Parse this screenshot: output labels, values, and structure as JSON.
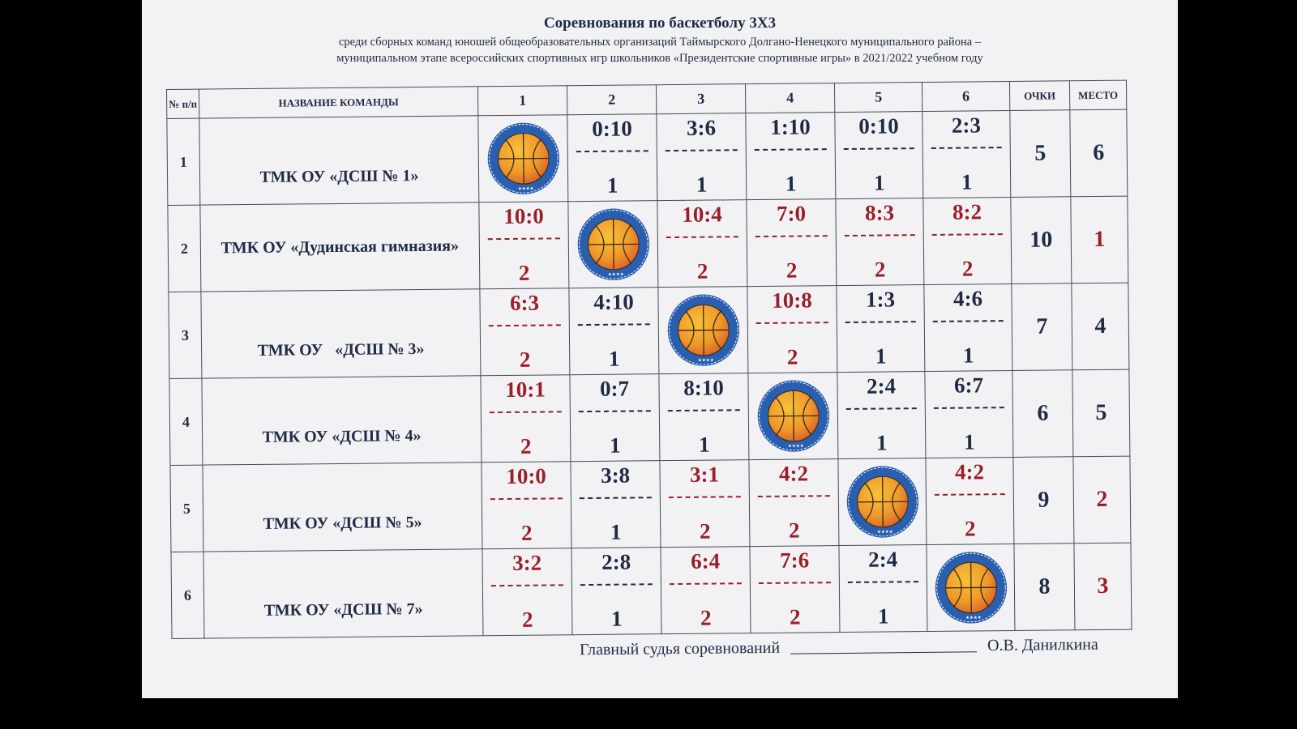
{
  "header": {
    "title": "Соревнования по баскетболу 3Х3",
    "subtitle_line1": "среди сборных команд юношей общеобразовательных организаций Таймырского Долгано-Ненецкого муниципального района –",
    "subtitle_line2": "муниципальном этапе всероссийских спортивных игр школьников «Президентские спортивные игры» в 2021/2022 учебном году"
  },
  "table": {
    "col_num": "№ п/п",
    "col_name": "НАЗВАНИЕ КОМАНДЫ",
    "cols": [
      "1",
      "2",
      "3",
      "4",
      "5",
      "6"
    ],
    "col_points": "ОЧКИ",
    "col_place": "МЕСТО",
    "rows": [
      {
        "num": "1",
        "name": "ТМК ОУ «ДСШ № 1»",
        "cells": [
          {
            "logo": true
          },
          {
            "score": "0:10",
            "pts": "1",
            "color": "blue"
          },
          {
            "score": "3:6",
            "pts": "1",
            "color": "blue"
          },
          {
            "score": "1:10",
            "pts": "1",
            "color": "blue"
          },
          {
            "score": "0:10",
            "pts": "1",
            "color": "blue"
          },
          {
            "score": "2:3",
            "pts": "1",
            "color": "blue"
          }
        ],
        "points": "5",
        "place": "6",
        "place_color": "blue"
      },
      {
        "num": "2",
        "name": "ТМК ОУ «Дудинская гимназия»",
        "cells": [
          {
            "score": "10:0",
            "pts": "2",
            "color": "red"
          },
          {
            "logo": true
          },
          {
            "score": "10:4",
            "pts": "2",
            "color": "red"
          },
          {
            "score": "7:0",
            "pts": "2",
            "color": "red"
          },
          {
            "score": "8:3",
            "pts": "2",
            "color": "red"
          },
          {
            "score": "8:2",
            "pts": "2",
            "color": "red"
          }
        ],
        "points": "10",
        "place": "1",
        "place_color": "red"
      },
      {
        "num": "3",
        "name": "ТМК ОУ   «ДСШ № 3»",
        "cells": [
          {
            "score": "6:3",
            "pts": "2",
            "color": "red"
          },
          {
            "score": "4:10",
            "pts": "1",
            "color": "blue"
          },
          {
            "logo": true
          },
          {
            "score": "10:8",
            "pts": "2",
            "color": "red"
          },
          {
            "score": "1:3",
            "pts": "1",
            "color": "blue"
          },
          {
            "score": "4:6",
            "pts": "1",
            "color": "blue"
          }
        ],
        "points": "7",
        "place": "4",
        "place_color": "blue"
      },
      {
        "num": "4",
        "name": "ТМК ОУ «ДСШ № 4»",
        "cells": [
          {
            "score": "10:1",
            "pts": "2",
            "color": "red"
          },
          {
            "score": "0:7",
            "pts": "1",
            "color": "blue"
          },
          {
            "score": "8:10",
            "pts": "1",
            "color": "blue"
          },
          {
            "logo": true
          },
          {
            "score": "2:4",
            "pts": "1",
            "color": "blue"
          },
          {
            "score": "6:7",
            "pts": "1",
            "color": "blue"
          }
        ],
        "points": "6",
        "place": "5",
        "place_color": "blue"
      },
      {
        "num": "5",
        "name": "ТМК ОУ «ДСШ № 5»",
        "cells": [
          {
            "score": "10:0",
            "pts": "2",
            "color": "red"
          },
          {
            "score": "3:8",
            "pts": "1",
            "color": "blue"
          },
          {
            "score": "3:1",
            "pts": "2",
            "color": "red"
          },
          {
            "score": "4:2",
            "pts": "2",
            "color": "red"
          },
          {
            "logo": true
          },
          {
            "score": "4:2",
            "pts": "2",
            "color": "red"
          }
        ],
        "points": "9",
        "place": "2",
        "place_color": "red"
      },
      {
        "num": "6",
        "name": "ТМК ОУ «ДСШ № 7»",
        "cells": [
          {
            "score": "3:2",
            "pts": "2",
            "color": "red"
          },
          {
            "score": "2:8",
            "pts": "1",
            "color": "blue"
          },
          {
            "score": "6:4",
            "pts": "2",
            "color": "red"
          },
          {
            "score": "7:6",
            "pts": "2",
            "color": "red"
          },
          {
            "score": "2:4",
            "pts": "1",
            "color": "blue"
          },
          {
            "logo": true
          }
        ],
        "points": "8",
        "place": "3",
        "place_color": "red"
      }
    ]
  },
  "footer": {
    "judge_label": "Главный судья соревнований",
    "judge_name": "О.В. Данилкина"
  }
}
